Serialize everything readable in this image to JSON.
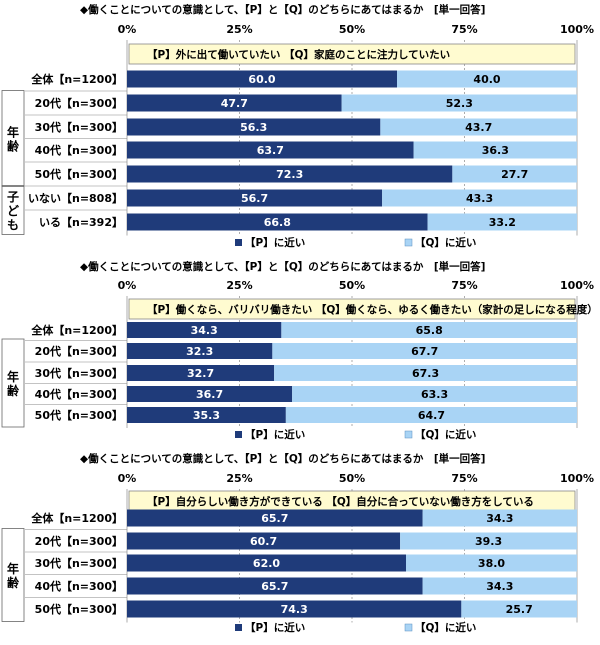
{
  "colors": {
    "p": "#1f3b7a",
    "q": "#a9d4f5",
    "box_bg": "#fffbd0",
    "grid": "#999999",
    "text": "#000000"
  },
  "chart_data": [
    {
      "type": "bar",
      "stacked": true,
      "orientation": "horizontal",
      "title": "◆働くことについての意識として、【P】と【Q】のどちらにあてはまるか　[単一回答]",
      "ticks": [
        "0%",
        "25%",
        "50%",
        "75%",
        "100%"
      ],
      "xlim": [
        0,
        100
      ],
      "statement": "【P】外に出て働いていたい 【Q】家庭のことに注力していたい",
      "categories": [
        "全体【n=1200】",
        "20代【n=300】",
        "30代【n=300】",
        "40代【n=300】",
        "50代【n=300】",
        "いない【n=808】",
        "いる【n=392】"
      ],
      "groups": [
        {
          "label": "年齢",
          "start": 1,
          "end": 4
        },
        {
          "label": "子ども",
          "start": 5,
          "end": 6
        }
      ],
      "series": [
        {
          "name": "【P】に近い",
          "values": [
            60.0,
            47.7,
            56.3,
            63.7,
            72.3,
            56.7,
            66.8
          ]
        },
        {
          "name": "【Q】に近い",
          "values": [
            40.0,
            52.3,
            43.7,
            36.3,
            27.7,
            43.3,
            33.2
          ]
        }
      ],
      "legend": "bottom"
    },
    {
      "type": "bar",
      "stacked": true,
      "orientation": "horizontal",
      "title": "◆働くことについての意識として、【P】と【Q】のどちらにあてはまるか　[単一回答]",
      "ticks": [
        "0%",
        "25%",
        "50%",
        "75%",
        "100%"
      ],
      "xlim": [
        0,
        100
      ],
      "statement": "【P】働くなら、バリバリ働きたい 【Q】働くなら、ゆるく働きたい（家計の足しになる程度）",
      "categories": [
        "全体【n=1200】",
        "20代【n=300】",
        "30代【n=300】",
        "40代【n=300】",
        "50代【n=300】"
      ],
      "groups": [
        {
          "label": "年齢",
          "start": 1,
          "end": 4
        }
      ],
      "series": [
        {
          "name": "【P】に近い",
          "values": [
            34.3,
            32.3,
            32.7,
            36.7,
            35.3
          ]
        },
        {
          "name": "【Q】に近い",
          "values": [
            65.8,
            67.7,
            67.3,
            63.3,
            64.7
          ]
        }
      ],
      "legend": "bottom"
    },
    {
      "type": "bar",
      "stacked": true,
      "orientation": "horizontal",
      "title": "◆働くことについての意識として、【P】と【Q】のどちらにあてはまるか　[単一回答]",
      "ticks": [
        "0%",
        "25%",
        "50%",
        "75%",
        "100%"
      ],
      "xlim": [
        0,
        100
      ],
      "statement": "【P】自分らしい働き方ができている 【Q】自分に合っていない働き方をしている",
      "categories": [
        "全体【n=1200】",
        "20代【n=300】",
        "30代【n=300】",
        "40代【n=300】",
        "50代【n=300】"
      ],
      "groups": [
        {
          "label": "年齢",
          "start": 1,
          "end": 4
        }
      ],
      "series": [
        {
          "name": "【P】に近い",
          "values": [
            65.7,
            60.7,
            62.0,
            65.7,
            74.3
          ]
        },
        {
          "name": "【Q】に近い",
          "values": [
            34.3,
            39.3,
            38.0,
            34.3,
            25.7
          ]
        }
      ],
      "legend": "bottom"
    }
  ]
}
